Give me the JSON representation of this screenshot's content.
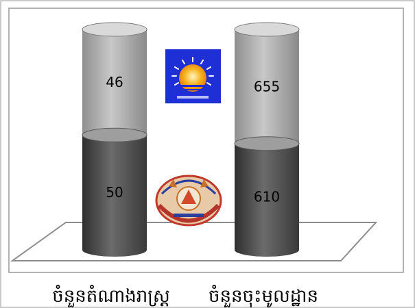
{
  "chart_data": {
    "type": "bar",
    "stacked": true,
    "style": "3d-cylinder",
    "categories": [
      "ចំនួនតំណាងរាស្ត្រ",
      "ចំនួនចុះមូលដ្ឋាន"
    ],
    "series": [
      {
        "values": [
          50,
          610
        ]
      },
      {
        "values": [
          46,
          655
        ]
      }
    ],
    "title": "",
    "xlabel": "",
    "ylabel": "",
    "legend": "none",
    "grid": false
  },
  "colors": {
    "lower_segment": "#4d4d4d",
    "upper_segment": "#a6a6a6",
    "floor_stroke": "#8c8c8c",
    "logo_blue": "#1f2fd6",
    "logo_sun": "#f7b21c"
  },
  "icons": {
    "top": "sun-rays-logo",
    "bottom": "party-emblem-logo"
  }
}
